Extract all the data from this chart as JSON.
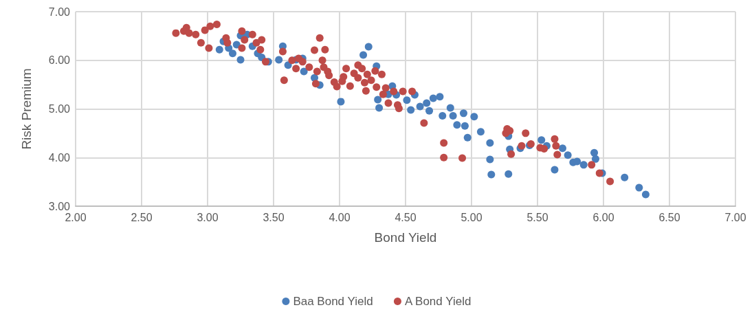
{
  "chart_data": {
    "type": "scatter",
    "xlabel": "Bond Yield",
    "ylabel": "Risk Premium",
    "xlim": [
      2,
      7
    ],
    "ylim": [
      3,
      7
    ],
    "xticks": [
      {
        "value": 2,
        "label": "2.00"
      },
      {
        "value": 2.5,
        "label": "2.50"
      },
      {
        "value": 3,
        "label": "3.00"
      },
      {
        "value": 3.5,
        "label": "3.50"
      },
      {
        "value": 4,
        "label": "4.00"
      },
      {
        "value": 4.5,
        "label": "4.50"
      },
      {
        "value": 5,
        "label": "5.00"
      },
      {
        "value": 5.5,
        "label": "5.50"
      },
      {
        "value": 6,
        "label": "6.00"
      },
      {
        "value": 6.5,
        "label": "6.50"
      },
      {
        "value": 7,
        "label": "7.00"
      }
    ],
    "yticks": [
      {
        "value": 3,
        "label": "3.00"
      },
      {
        "value": 4,
        "label": "4.00"
      },
      {
        "value": 5,
        "label": "5.00"
      },
      {
        "value": 6,
        "label": "6.00"
      },
      {
        "value": 7,
        "label": "7.00"
      }
    ],
    "grid": true,
    "legend": "bottom",
    "marker": "circle",
    "series": [
      {
        "name": "Baa Bond Yield",
        "color": "#4a7ebb",
        "x": [
          3.09,
          3.12,
          3.16,
          3.19,
          3.22,
          3.25,
          3.25,
          3.3,
          3.34,
          3.38,
          3.41,
          3.46,
          3.54,
          3.57,
          3.61,
          3.67,
          3.72,
          3.73,
          3.81,
          3.85,
          4.01,
          4.18,
          4.22,
          4.28,
          4.29,
          4.3,
          4.37,
          4.4,
          4.43,
          4.51,
          4.54,
          4.57,
          4.61,
          4.66,
          4.68,
          4.71,
          4.76,
          4.78,
          4.84,
          4.86,
          4.89,
          4.94,
          4.95,
          4.97,
          5.02,
          5.07,
          5.14,
          5.14,
          5.15,
          5.28,
          5.28,
          5.29,
          5.37,
          5.44,
          5.53,
          5.57,
          5.63,
          5.69,
          5.73,
          5.77,
          5.8,
          5.85,
          5.93,
          5.94,
          5.99,
          6.16,
          6.27,
          6.32
        ],
        "values": [
          6.22,
          6.39,
          6.25,
          6.14,
          6.32,
          6.51,
          6.01,
          6.53,
          6.29,
          6.14,
          6.06,
          5.97,
          6.01,
          6.29,
          5.9,
          6.01,
          6.04,
          5.77,
          5.64,
          5.49,
          5.15,
          6.11,
          6.28,
          5.88,
          5.19,
          5.02,
          5.3,
          5.47,
          5.29,
          5.18,
          4.98,
          5.29,
          5.05,
          5.12,
          4.96,
          5.22,
          5.25,
          4.86,
          5.02,
          4.86,
          4.67,
          4.91,
          4.65,
          4.41,
          4.84,
          4.53,
          4.3,
          3.96,
          3.65,
          3.66,
          4.44,
          4.17,
          4.19,
          4.25,
          4.36,
          4.24,
          3.75,
          4.19,
          4.05,
          3.9,
          3.92,
          3.85,
          4.1,
          3.97,
          3.68,
          3.59,
          3.38,
          3.24
        ]
      },
      {
        "name": "A Bond Yield",
        "color": "#be4b48",
        "x": [
          2.76,
          2.82,
          2.84,
          2.86,
          2.91,
          2.98,
          2.95,
          3.01,
          3.02,
          3.07,
          3.14,
          3.15,
          3.26,
          3.26,
          3.28,
          3.34,
          3.37,
          3.4,
          3.41,
          3.44,
          3.57,
          3.58,
          3.64,
          3.67,
          3.69,
          3.72,
          3.77,
          3.81,
          3.82,
          3.83,
          3.85,
          3.87,
          3.89,
          3.88,
          3.91,
          3.92,
          3.96,
          3.98,
          4.02,
          4.03,
          4.05,
          4.08,
          4.11,
          4.14,
          4.14,
          4.17,
          4.19,
          4.2,
          4.21,
          4.24,
          4.27,
          4.28,
          4.32,
          4.33,
          4.35,
          4.37,
          4.41,
          4.44,
          4.45,
          4.48,
          4.55,
          4.64,
          4.79,
          4.79,
          4.93,
          5.26,
          5.27,
          5.29,
          5.3,
          5.38,
          5.41,
          5.45,
          5.52,
          5.55,
          5.63,
          5.64,
          5.65,
          5.91,
          5.97,
          6.05
        ],
        "values": [
          6.56,
          6.6,
          6.67,
          6.56,
          6.53,
          6.62,
          6.36,
          6.25,
          6.7,
          6.74,
          6.46,
          6.36,
          6.6,
          6.25,
          6.42,
          6.53,
          6.36,
          6.22,
          6.42,
          5.97,
          6.18,
          5.59,
          6.0,
          5.83,
          6.04,
          5.97,
          5.86,
          6.21,
          5.52,
          5.77,
          6.46,
          6.0,
          6.22,
          5.86,
          5.77,
          5.69,
          5.55,
          5.46,
          5.57,
          5.66,
          5.83,
          5.47,
          5.73,
          5.64,
          5.9,
          5.83,
          5.54,
          5.37,
          5.71,
          5.59,
          5.78,
          5.45,
          5.71,
          5.3,
          5.43,
          5.12,
          5.36,
          5.08,
          5.01,
          5.36,
          5.36,
          4.71,
          4.3,
          4.0,
          3.99,
          4.5,
          4.59,
          4.55,
          4.07,
          4.24,
          4.5,
          4.28,
          4.2,
          4.18,
          4.38,
          4.24,
          4.06,
          3.85,
          3.68,
          3.51
        ]
      }
    ]
  }
}
